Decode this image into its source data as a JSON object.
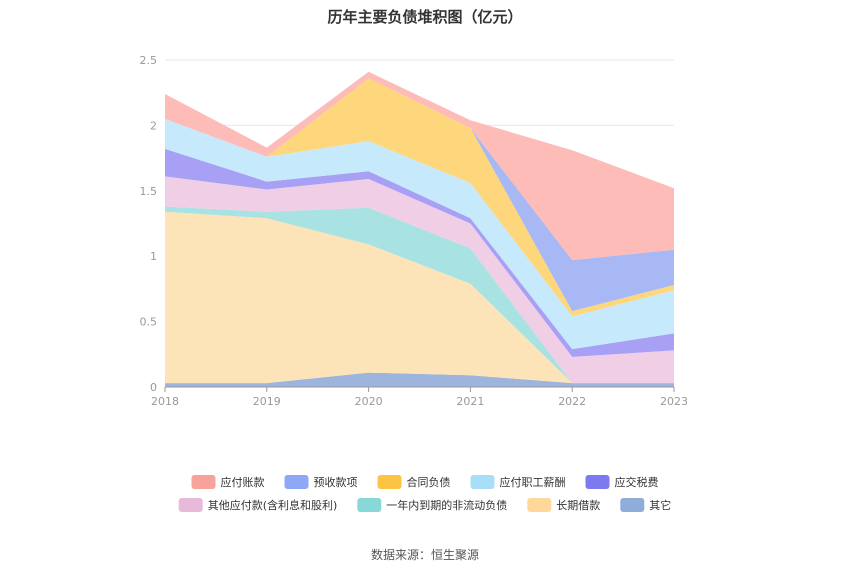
{
  "title": "历年主要负债堆积图（亿元）",
  "source": "数据来源：恒生聚源",
  "chart_data": {
    "type": "area",
    "stacked": true,
    "categories": [
      "2018",
      "2019",
      "2020",
      "2021",
      "2022",
      "2023"
    ],
    "ylim": [
      0,
      2.5
    ],
    "yticks": [
      "0",
      "0.5",
      "1",
      "1.5",
      "2",
      "2.5"
    ],
    "grid": true,
    "legend_position": "bottom",
    "series": [
      {
        "name": "其它",
        "color": "#9db5dd",
        "values": [
          0.03,
          0.03,
          0.11,
          0.09,
          0.03,
          0.03
        ]
      },
      {
        "name": "长期借款",
        "color": "#fde4b8",
        "values": [
          1.31,
          1.26,
          0.98,
          0.7,
          0.0,
          0.0
        ]
      },
      {
        "name": "一年内到期的非流动负债",
        "color": "#a9e2e2",
        "values": [
          0.04,
          0.05,
          0.28,
          0.27,
          0.0,
          0.0
        ]
      },
      {
        "name": "其他应付款(含利息和股利)",
        "color": "#f0cfe6",
        "values": [
          0.23,
          0.17,
          0.22,
          0.19,
          0.2,
          0.25
        ]
      },
      {
        "name": "应交税费",
        "color": "#a7a0f5",
        "values": [
          0.21,
          0.06,
          0.06,
          0.04,
          0.06,
          0.13
        ]
      },
      {
        "name": "应付职工薪酬",
        "color": "#c6e9fb",
        "values": [
          0.23,
          0.19,
          0.23,
          0.27,
          0.25,
          0.33
        ]
      },
      {
        "name": "合同负债",
        "color": "#fed67c",
        "values": [
          0.0,
          0.0,
          0.48,
          0.42,
          0.04,
          0.04
        ]
      },
      {
        "name": "预收款项",
        "color": "#a8b8f4",
        "values": [
          0.0,
          0.0,
          0.0,
          0.0,
          0.39,
          0.27
        ]
      },
      {
        "name": "应付账款",
        "color": "#fdbcb8",
        "values": [
          0.19,
          0.07,
          0.05,
          0.06,
          0.84,
          0.47
        ]
      }
    ],
    "legend": [
      {
        "name": "应付账款",
        "color": "#f7a29b"
      },
      {
        "name": "预收款项",
        "color": "#8ea8f6"
      },
      {
        "name": "合同负债",
        "color": "#fcc444"
      },
      {
        "name": "应付职工薪酬",
        "color": "#a8def8"
      },
      {
        "name": "应交税费",
        "color": "#7d79ef"
      },
      {
        "name": "其他应付款(含利息和股利)",
        "color": "#e9b9da"
      },
      {
        "name": "一年内到期的非流动负债",
        "color": "#88d8d7"
      },
      {
        "name": "长期借款",
        "color": "#fdd89a"
      },
      {
        "name": "其它",
        "color": "#8fadd9"
      }
    ]
  }
}
